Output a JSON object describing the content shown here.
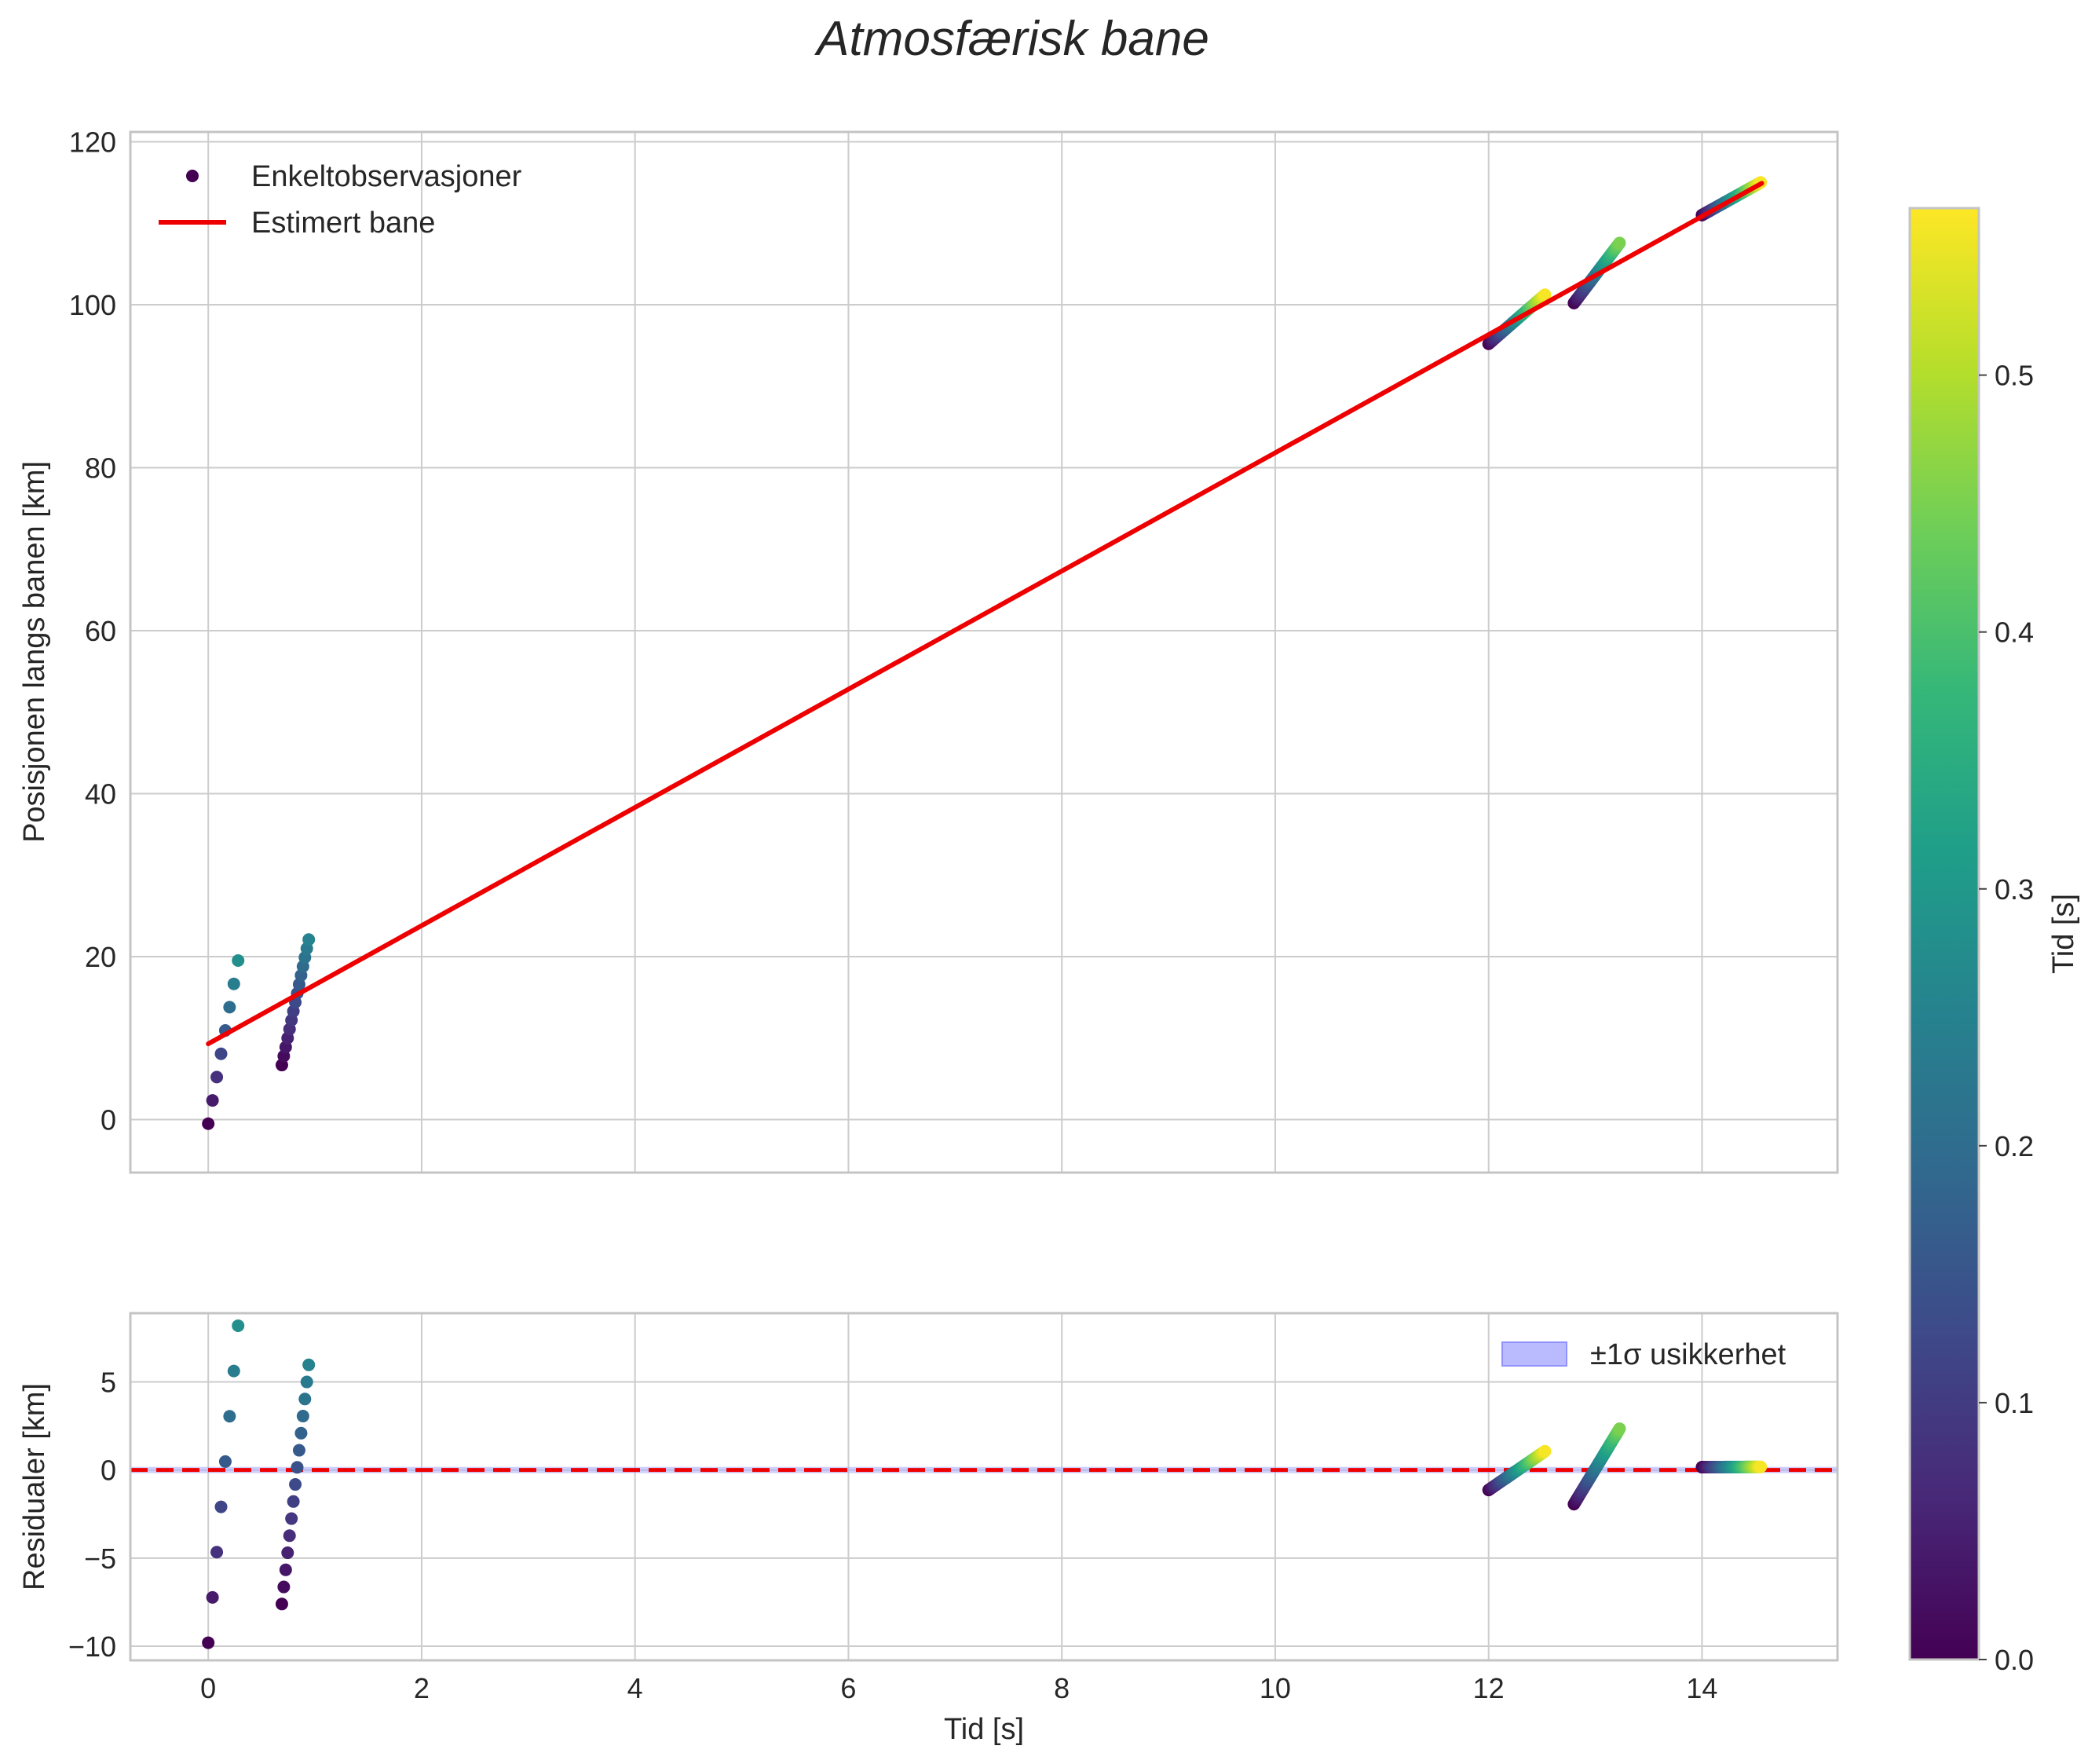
{
  "chart_data": {
    "title": "Atmosfærisk bane",
    "colors": {
      "fit_line": "#ee0000",
      "zero_line": "#ee0000",
      "band_fill": "#aaaaff",
      "band_edge": "#7777ff",
      "viridis": [
        "#440154",
        "#482878",
        "#3e4989",
        "#31688e",
        "#26828e",
        "#1f9e89",
        "#35b779",
        "#6ece58",
        "#b5de2b",
        "#fde725"
      ]
    },
    "colorbar": {
      "label": "Tid [s]",
      "min": 0.0,
      "max": 0.565,
      "ticks": [
        0.0,
        0.1,
        0.2,
        0.3,
        0.4,
        0.5
      ],
      "tick_labels": [
        "0.0",
        "0.1",
        "0.2",
        "0.3",
        "0.4",
        "0.5"
      ]
    },
    "x_axis": {
      "label": "Tid [s]",
      "lim": [
        -0.73,
        15.27
      ],
      "ticks": [
        0,
        2,
        4,
        6,
        8,
        10,
        12,
        14
      ],
      "tick_labels": [
        "0",
        "2",
        "4",
        "6",
        "8",
        "10",
        "12",
        "14"
      ]
    },
    "top": {
      "type": "scatter+line",
      "ylabel": "Posisjonen langs banen [km]",
      "ylim": [
        -6.5,
        121.2
      ],
      "yticks": [
        0,
        20,
        40,
        60,
        80,
        100,
        120
      ],
      "ytick_labels": [
        "0",
        "20",
        "40",
        "60",
        "80",
        "100",
        "120"
      ],
      "legend": {
        "position": "upper-left",
        "entries": [
          "Enkeltobservasjoner",
          "Estimert bane"
        ]
      },
      "fit_line": {
        "name": "Estimert bane",
        "x": [
          0.0,
          14.56
        ],
        "y": [
          9.3,
          114.9
        ]
      },
      "segments": [
        {
          "t_start": 0.0,
          "dt": 0.04,
          "n": 8,
          "y_start": -0.5,
          "y_step": 2.86,
          "tmax": 0.28
        },
        {
          "t_start": 0.69,
          "dt": 0.018,
          "n": 15,
          "y_start": 6.7,
          "y_step": 1.1,
          "tmax": 0.25
        },
        {
          "t_start": 12.0,
          "dt": 0.012,
          "n": 45,
          "y_start": 95.2,
          "y_step": 0.137,
          "tmax": 0.56
        },
        {
          "t_start": 12.8,
          "dt": 0.0095,
          "n": 46,
          "y_start": 100.2,
          "y_step": 0.164,
          "tmax": 0.45
        },
        {
          "t_start": 14.0,
          "dt": 0.0125,
          "n": 45,
          "y_start": 111.0,
          "y_step": 0.091,
          "tmax": 0.56
        }
      ]
    },
    "bottom": {
      "type": "scatter",
      "ylabel": "Residualer [km]",
      "ylim": [
        -10.8,
        8.9
      ],
      "yticks": [
        5,
        0,
        -5,
        -10
      ],
      "ytick_labels": [
        "5",
        "0",
        "−5",
        "−10"
      ],
      "legend": {
        "position": "upper-right",
        "entries": [
          "±1σ usikkerhet"
        ]
      },
      "zero_line": 0
    }
  }
}
